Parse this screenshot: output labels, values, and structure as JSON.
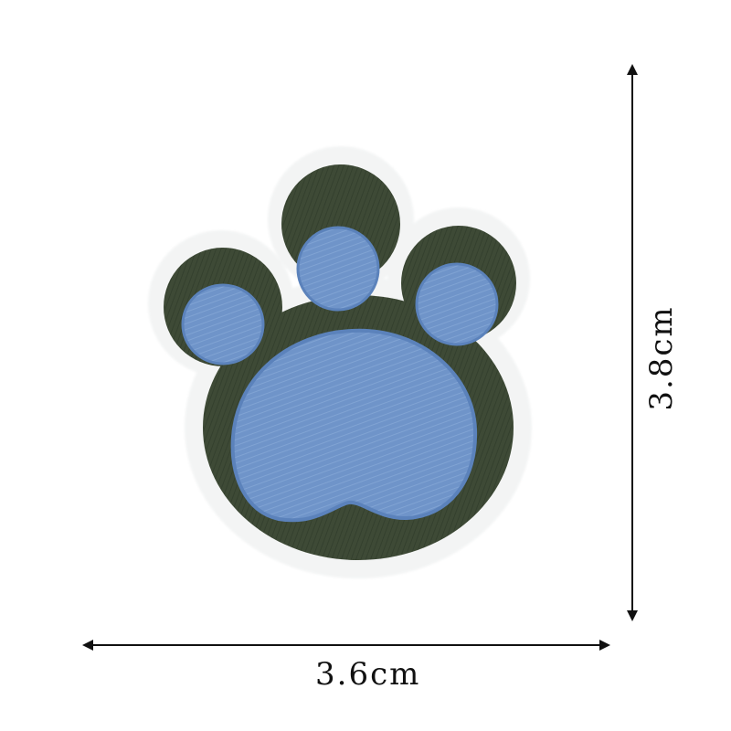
{
  "product": {
    "name_icon": "paw-print-embroidered-patch",
    "colors": {
      "background": "#ffffff",
      "felt_border": "#f3f4f4",
      "body": "#3e4a36",
      "body_dark": "#2d3828",
      "pads": "#6f94c9",
      "pads_highlight": "#8eaedb",
      "dimension_lines": "#111111"
    }
  },
  "dimensions": {
    "width_label": "3.6cm",
    "height_label": "3.8cm"
  }
}
